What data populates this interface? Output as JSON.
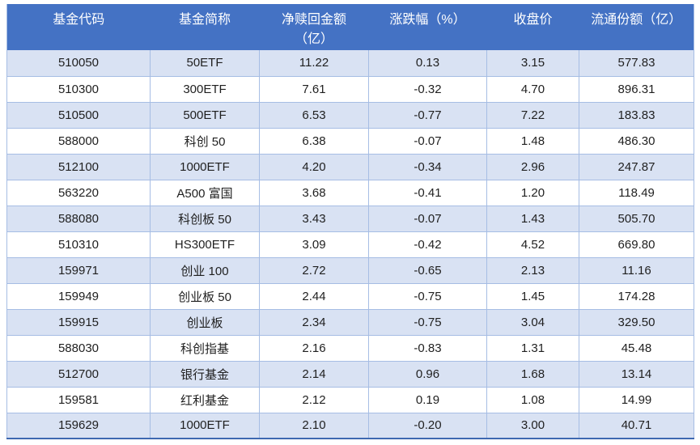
{
  "colors": {
    "header_bg": "#4472C4",
    "band_bg": "#D9E2F3",
    "border": "#A6BDE4",
    "bottom_border": "#3E68B1",
    "header_text": "#FFFFFF",
    "body_text": "#1F1F1F"
  },
  "table": {
    "columns": [
      {
        "label": "基金代码",
        "sublabel": ""
      },
      {
        "label": "基金简称",
        "sublabel": ""
      },
      {
        "label": "净赎回金额",
        "sublabel": "（亿）"
      },
      {
        "label": "涨跌幅（%）",
        "sublabel": ""
      },
      {
        "label": "收盘价",
        "sublabel": ""
      },
      {
        "label": "流通份额（亿）",
        "sublabel": ""
      }
    ],
    "rows": [
      [
        "510050",
        "50ETF",
        "11.22",
        "0.13",
        "3.15",
        "577.83"
      ],
      [
        "510300",
        "300ETF",
        "7.61",
        "-0.32",
        "4.70",
        "896.31"
      ],
      [
        "510500",
        "500ETF",
        "6.53",
        "-0.77",
        "7.22",
        "183.83"
      ],
      [
        "588000",
        "科创 50",
        "6.38",
        "-0.07",
        "1.48",
        "486.30"
      ],
      [
        "512100",
        "1000ETF",
        "4.20",
        "-0.34",
        "2.96",
        "247.87"
      ],
      [
        "563220",
        "A500 富国",
        "3.68",
        "-0.41",
        "1.20",
        "118.49"
      ],
      [
        "588080",
        "科创板 50",
        "3.43",
        "-0.07",
        "1.43",
        "505.70"
      ],
      [
        "510310",
        "HS300ETF",
        "3.09",
        "-0.42",
        "4.52",
        "669.80"
      ],
      [
        "159971",
        "创业 100",
        "2.72",
        "-0.65",
        "2.13",
        "11.16"
      ],
      [
        "159949",
        "创业板 50",
        "2.44",
        "-0.75",
        "1.45",
        "174.28"
      ],
      [
        "159915",
        "创业板",
        "2.34",
        "-0.75",
        "3.04",
        "329.50"
      ],
      [
        "588030",
        "科创指基",
        "2.16",
        "-0.83",
        "1.31",
        "45.48"
      ],
      [
        "512700",
        "银行基金",
        "2.14",
        "0.96",
        "1.68",
        "13.14"
      ],
      [
        "159581",
        "红利基金",
        "2.12",
        "0.19",
        "1.08",
        "14.99"
      ],
      [
        "159629",
        "1000ETF",
        "2.10",
        "-0.20",
        "3.00",
        "40.71"
      ]
    ]
  },
  "chart_data": {
    "type": "table",
    "title": "",
    "columns": [
      "基金代码",
      "基金简称",
      "净赎回金额（亿）",
      "涨跌幅（%）",
      "收盘价",
      "流通份额（亿）"
    ],
    "rows": [
      [
        "510050",
        "50ETF",
        11.22,
        0.13,
        3.15,
        577.83
      ],
      [
        "510300",
        "300ETF",
        7.61,
        -0.32,
        4.7,
        896.31
      ],
      [
        "510500",
        "500ETF",
        6.53,
        -0.77,
        7.22,
        183.83
      ],
      [
        "588000",
        "科创 50",
        6.38,
        -0.07,
        1.48,
        486.3
      ],
      [
        "512100",
        "1000ETF",
        4.2,
        -0.34,
        2.96,
        247.87
      ],
      [
        "563220",
        "A500 富国",
        3.68,
        -0.41,
        1.2,
        118.49
      ],
      [
        "588080",
        "科创板 50",
        3.43,
        -0.07,
        1.43,
        505.7
      ],
      [
        "510310",
        "HS300ETF",
        3.09,
        -0.42,
        4.52,
        669.8
      ],
      [
        "159971",
        "创业 100",
        2.72,
        -0.65,
        2.13,
        11.16
      ],
      [
        "159949",
        "创业板 50",
        2.44,
        -0.75,
        1.45,
        174.28
      ],
      [
        "159915",
        "创业板",
        2.34,
        -0.75,
        3.04,
        329.5
      ],
      [
        "588030",
        "科创指基",
        2.16,
        -0.83,
        1.31,
        45.48
      ],
      [
        "512700",
        "银行基金",
        2.14,
        0.96,
        1.68,
        13.14
      ],
      [
        "159581",
        "红利基金",
        2.12,
        0.19,
        1.08,
        14.99
      ],
      [
        "159629",
        "1000ETF",
        2.1,
        -0.2,
        3.0,
        40.71
      ]
    ]
  }
}
